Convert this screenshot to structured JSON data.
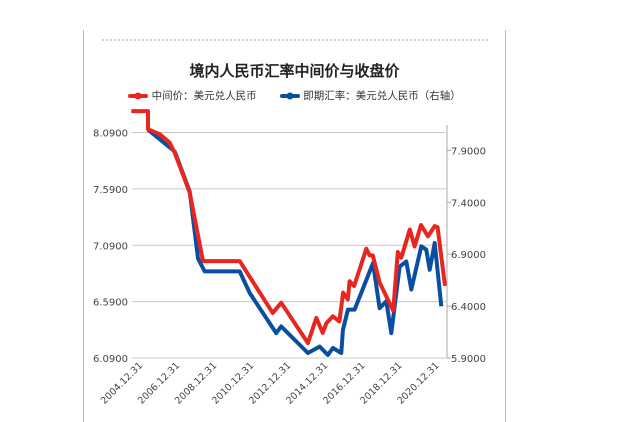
{
  "chart_data": {
    "type": "line",
    "title": "境内人民币汇率中间价与收盘价",
    "legend_position": "top",
    "grid": true,
    "colors": {
      "series_0": "#e8251e",
      "series_1": "#0a4ea2"
    },
    "x_tick_labels": [
      "2004.12.31",
      "2006.12.31",
      "2008.12.31",
      "2010.12.31",
      "2012.12.31",
      "2014.12.31",
      "2016.12.31",
      "2018.12.31",
      "2020.12.31"
    ],
    "x_ticks": [
      2005,
      2007,
      2009,
      2011,
      2013,
      2015,
      2017,
      2019,
      2021
    ],
    "left_axis": {
      "ylim": [
        6.09,
        8.29
      ],
      "tick_labels": [
        "8.0900",
        "7.5900",
        "7.0900",
        "6.5900",
        "6.0900"
      ],
      "ticks": [
        8.09,
        7.59,
        7.09,
        6.59,
        6.09
      ]
    },
    "right_axis": {
      "ylim": [
        5.9,
        8.29
      ],
      "tick_labels": [
        "7.9000",
        "7.4000",
        "6.9000",
        "6.4000",
        "5.9000"
      ],
      "ticks": [
        7.9,
        7.4,
        6.9,
        6.4,
        5.9
      ]
    },
    "series": [
      {
        "name": "中间价：美元兑人民币",
        "axis": "left",
        "x": [
          2004.37,
          2005.27,
          2005.27,
          2005.9,
          2006.44,
          2006.71,
          2007.52,
          2008.24,
          2010.22,
          2012.0,
          2012.46,
          2013.9,
          2014.35,
          2014.7,
          2014.9,
          2015.25,
          2015.6,
          2015.8,
          2016.05,
          2016.15,
          2016.4,
          2017.05,
          2017.23,
          2017.4,
          2017.77,
          2018.5,
          2018.75,
          2018.94,
          2019.4,
          2019.66,
          2020.0,
          2020.38,
          2020.74,
          2020.9,
          2021.3
        ],
        "y": [
          8.28,
          8.28,
          8.12,
          8.075,
          8.0,
          7.91,
          7.557,
          6.95,
          6.95,
          6.49,
          6.58,
          6.223,
          6.446,
          6.313,
          6.4,
          6.46,
          6.415,
          6.67,
          6.61,
          6.77,
          6.73,
          7.06,
          7.0,
          7.0,
          6.76,
          6.51,
          7.03,
          6.98,
          7.23,
          7.08,
          7.27,
          7.17,
          7.26,
          7.25,
          6.73
        ]
      },
      {
        "name": "即期汇率：美元兑人民币（右轴）",
        "axis": "right",
        "x": [
          2005.27,
          2006.71,
          2007.52,
          2007.97,
          2008.33,
          2010.22,
          2010.76,
          2012.19,
          2012.46,
          2013.9,
          2014.53,
          2014.98,
          2015.25,
          2015.7,
          2015.79,
          2016.06,
          2016.42,
          2017.41,
          2017.77,
          2018.13,
          2018.4,
          2018.85,
          2019.21,
          2019.48,
          2020.02,
          2020.29,
          2020.47,
          2020.74,
          2021.1
        ],
        "y": [
          8.1,
          7.89,
          7.506,
          6.86,
          6.735,
          6.735,
          6.526,
          6.14,
          6.205,
          5.948,
          6.01,
          5.93,
          5.996,
          5.948,
          6.17,
          6.366,
          6.366,
          6.815,
          6.38,
          6.446,
          6.14,
          6.78,
          6.83,
          6.56,
          6.976,
          6.944,
          6.75,
          7.008,
          6.398
        ]
      }
    ]
  }
}
